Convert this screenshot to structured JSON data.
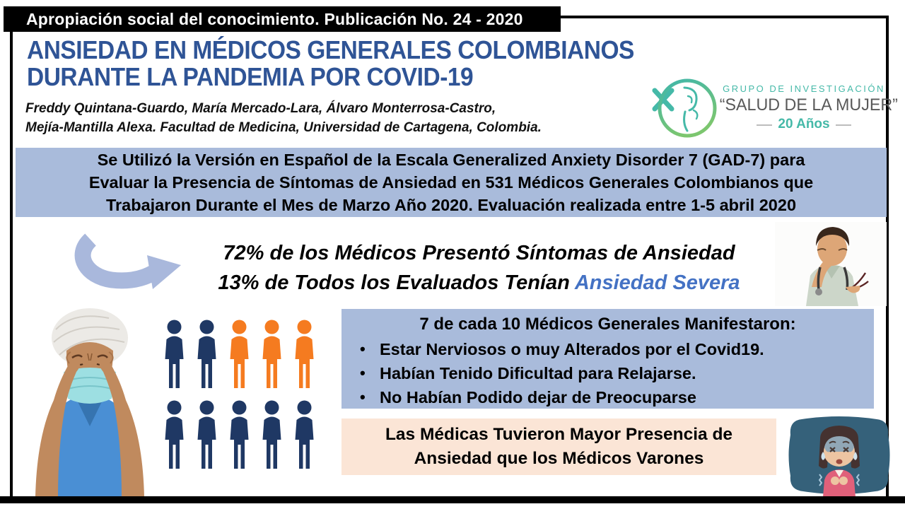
{
  "publication_bar": {
    "text": "Apropiación social del conocimiento. Publicación No. 24 -  2020"
  },
  "header": {
    "title_line1": "ANSIEDAD EN MÉDICOS GENERALES COLOMBIANOS",
    "title_line2": "DURANTE LA PANDEMIA POR COVID-19",
    "authors_line1": "Freddy Quintana-Guardo, María Mercado-Lara, Álvaro Monterrosa-Castro,",
    "authors_line2": "Mejía-Mantilla Alexa.  Facultad de Medicina, Universidad de Cartagena, Colombia."
  },
  "logo": {
    "icon": "woman-silhouette-circle-logo-icon",
    "group_label": "GRUPO DE INVESTIGACIÓN",
    "group_name": "“SALUD DE LA MUJER”",
    "anniversary": "20 Años"
  },
  "method_banner": {
    "line1": "Se Utilizó la Versión en Español de la Escala Generalized Anxiety Disorder 7 (GAD-7) para",
    "line2": "Evaluar la Presencia de Síntomas de Ansiedad en 531 Médicos Generales Colombianos que",
    "line3": "Trabajaron Durante el Mes de Marzo Año 2020. Evaluación realizada entre 1-5 abril 2020"
  },
  "key_findings": {
    "arrow_icon": "curved-right-arrow-icon",
    "line1": "72% de los Médicos Presentó Síntomas de Ansiedad",
    "line2_prefix": "13% de Todos los Evaluados Tenían ",
    "line2_highlight": "Ansiedad Severa",
    "highlight_color": "#4472C4"
  },
  "pictogram": {
    "meaning": "7 de cada 10",
    "rows": [
      [
        "navy",
        "navy",
        "orange",
        "orange",
        "orange"
      ],
      [
        "navy",
        "navy",
        "navy",
        "navy",
        "navy"
      ]
    ],
    "colors": {
      "navy": "#1F3864",
      "orange": "#F57B20"
    }
  },
  "symptoms_box": {
    "heading": "7 de cada 10 Médicos Generales Manifestaron:",
    "bullets": [
      "Estar Nerviosos o muy Alterados por el Covid19.",
      "Habían Tenido Dificultad para Relajarse.",
      "No Habían Podido dejar de Preocuparse"
    ]
  },
  "gender_box": {
    "line1": "Las Médicas Tuvieron Mayor Presencia de",
    "line2": "Ansiedad que los Médicos Varones"
  },
  "images": {
    "left": "stressed-nurse-photo",
    "top_right": "stressed-doctor-photo",
    "bottom_right": "anxious-woman-cartoon"
  },
  "colors": {
    "banner_bg": "#A9BBDB",
    "symptoms_box_bg": "#A9BBDB",
    "gender_box_bg": "#FBE5D6",
    "title_blue": "#2F5496",
    "highlight_blue": "#4472C4",
    "logo_teal": "#45B9A8",
    "cartoon_bg": "#35617A",
    "arrow_blue": "#A9B8DC"
  }
}
